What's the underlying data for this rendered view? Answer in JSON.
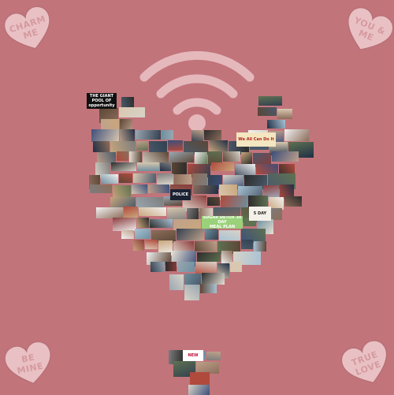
{
  "background_color": "#c2747b",
  "candies": {
    "top_left": "CHARM\nME",
    "top_right": "YOU &\nME",
    "bottom_left": "BE\nMINE",
    "bottom_right": "TRUE\nLOVE"
  },
  "candy_colors": {
    "fill": "#e9c1c4",
    "stroke": "#b97077",
    "text": "#d59a9f"
  },
  "wifi_icon": {
    "name": "wifi-icon",
    "color": "#e5b8bc"
  },
  "collage": {
    "shape": "heart",
    "captions": {
      "opportunity": "THE GIANT POOL OF\nopportunity",
      "we_all_can_do_it": "We All Can Do It",
      "police": "POLICE",
      "meal_plan": "SUGAR DETOX 30 DAY\nMEAL PLAN",
      "five_day": "5 DAY",
      "new": "NEW"
    }
  }
}
